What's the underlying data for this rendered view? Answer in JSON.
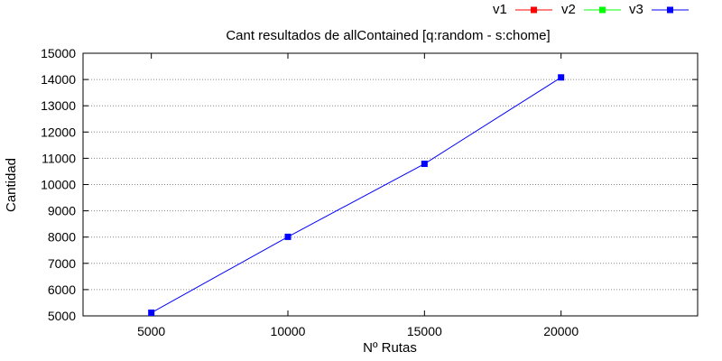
{
  "chart_data": {
    "type": "line",
    "title": "Cant resultados de allContained [q:random - s:chome]",
    "xlabel": "Nº Rutas",
    "ylabel": "Cantidad",
    "xlim": [
      2500,
      25000
    ],
    "ylim": [
      5000,
      15000
    ],
    "x_ticks": [
      5000,
      10000,
      15000,
      20000
    ],
    "y_ticks": [
      5000,
      6000,
      7000,
      8000,
      9000,
      10000,
      11000,
      12000,
      13000,
      14000,
      15000
    ],
    "grid": true,
    "legend_position": "top-right",
    "series": [
      {
        "name": "v1",
        "color": "#ff0000",
        "x": [],
        "y": []
      },
      {
        "name": "v2",
        "color": "#00ff00",
        "x": [],
        "y": []
      },
      {
        "name": "v3",
        "color": "#0000ff",
        "x": [
          5000,
          10000,
          15000,
          20000
        ],
        "y": [
          5120,
          8010,
          10790,
          14080
        ]
      }
    ]
  }
}
